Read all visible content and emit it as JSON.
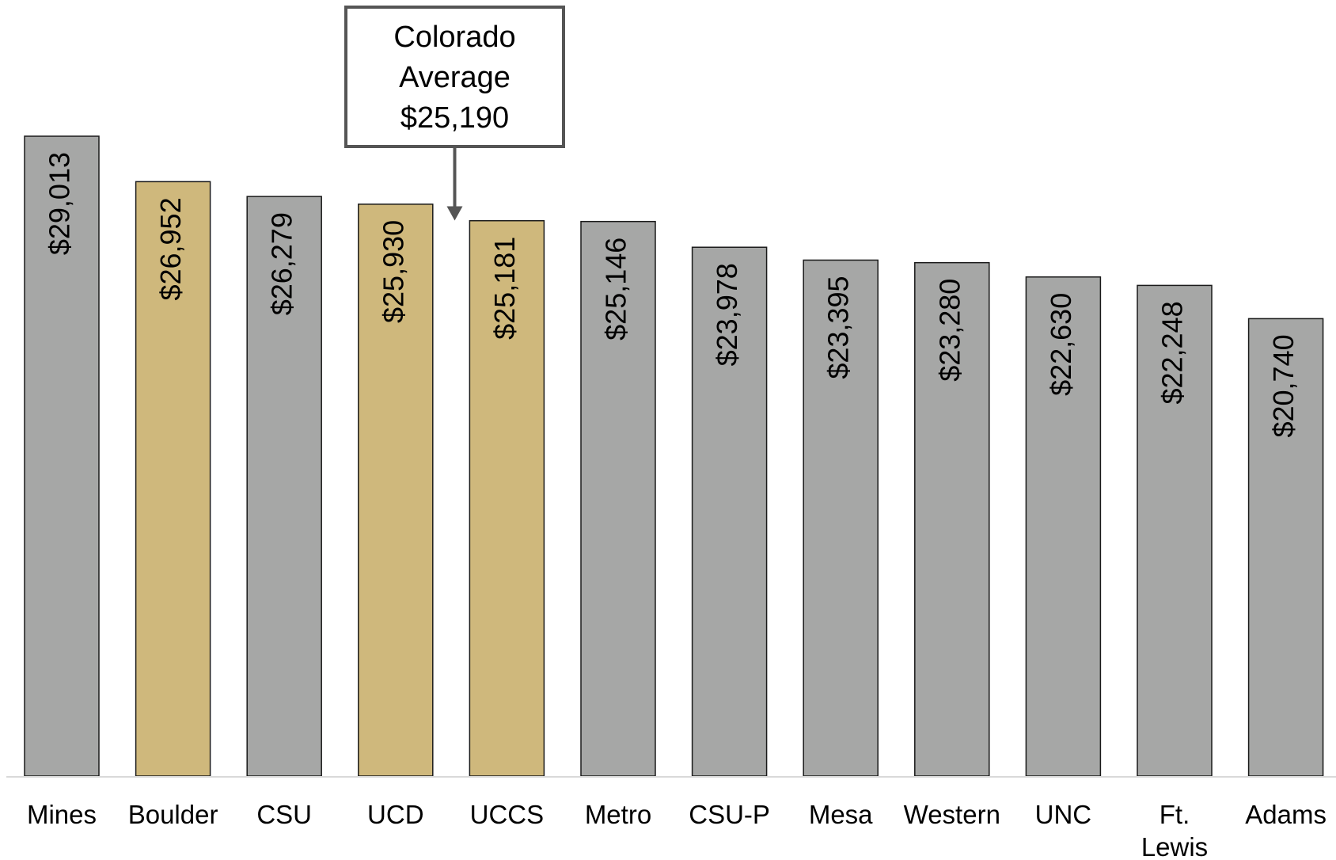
{
  "chart_data": {
    "type": "bar",
    "categories": [
      "Mines",
      "Boulder",
      "CSU",
      "UCD",
      "UCCS",
      "Metro",
      "CSU-P",
      "Mesa",
      "Western",
      "UNC",
      "Ft. Lewis",
      "Adams"
    ],
    "values": [
      29013,
      26952,
      26279,
      25930,
      25181,
      25146,
      23978,
      23395,
      23280,
      22630,
      22248,
      20740
    ],
    "value_labels": [
      "$29,013",
      "$26,952",
      "$26,279",
      "$25,930",
      "$25,181",
      "$25,146",
      "$23,978",
      "$23,395",
      "$23,280",
      "$22,630",
      "$22,248",
      "$20,740"
    ],
    "highlighted": [
      false,
      true,
      false,
      true,
      true,
      false,
      false,
      false,
      false,
      false,
      false,
      false
    ],
    "ylim": [
      0,
      29013
    ],
    "grid": false,
    "annotation": {
      "lines": [
        "Colorado",
        "Average",
        "$25,190"
      ],
      "value": 25190
    },
    "title": "",
    "xlabel": "",
    "ylabel": ""
  },
  "colors": {
    "bar_default": "#a6a7a6",
    "bar_highlight": "#cfb87c",
    "bar_outline": "#1a1a1a",
    "axis_line": "#d9d9d9",
    "callout_border": "#555555",
    "arrow": "#555555"
  }
}
